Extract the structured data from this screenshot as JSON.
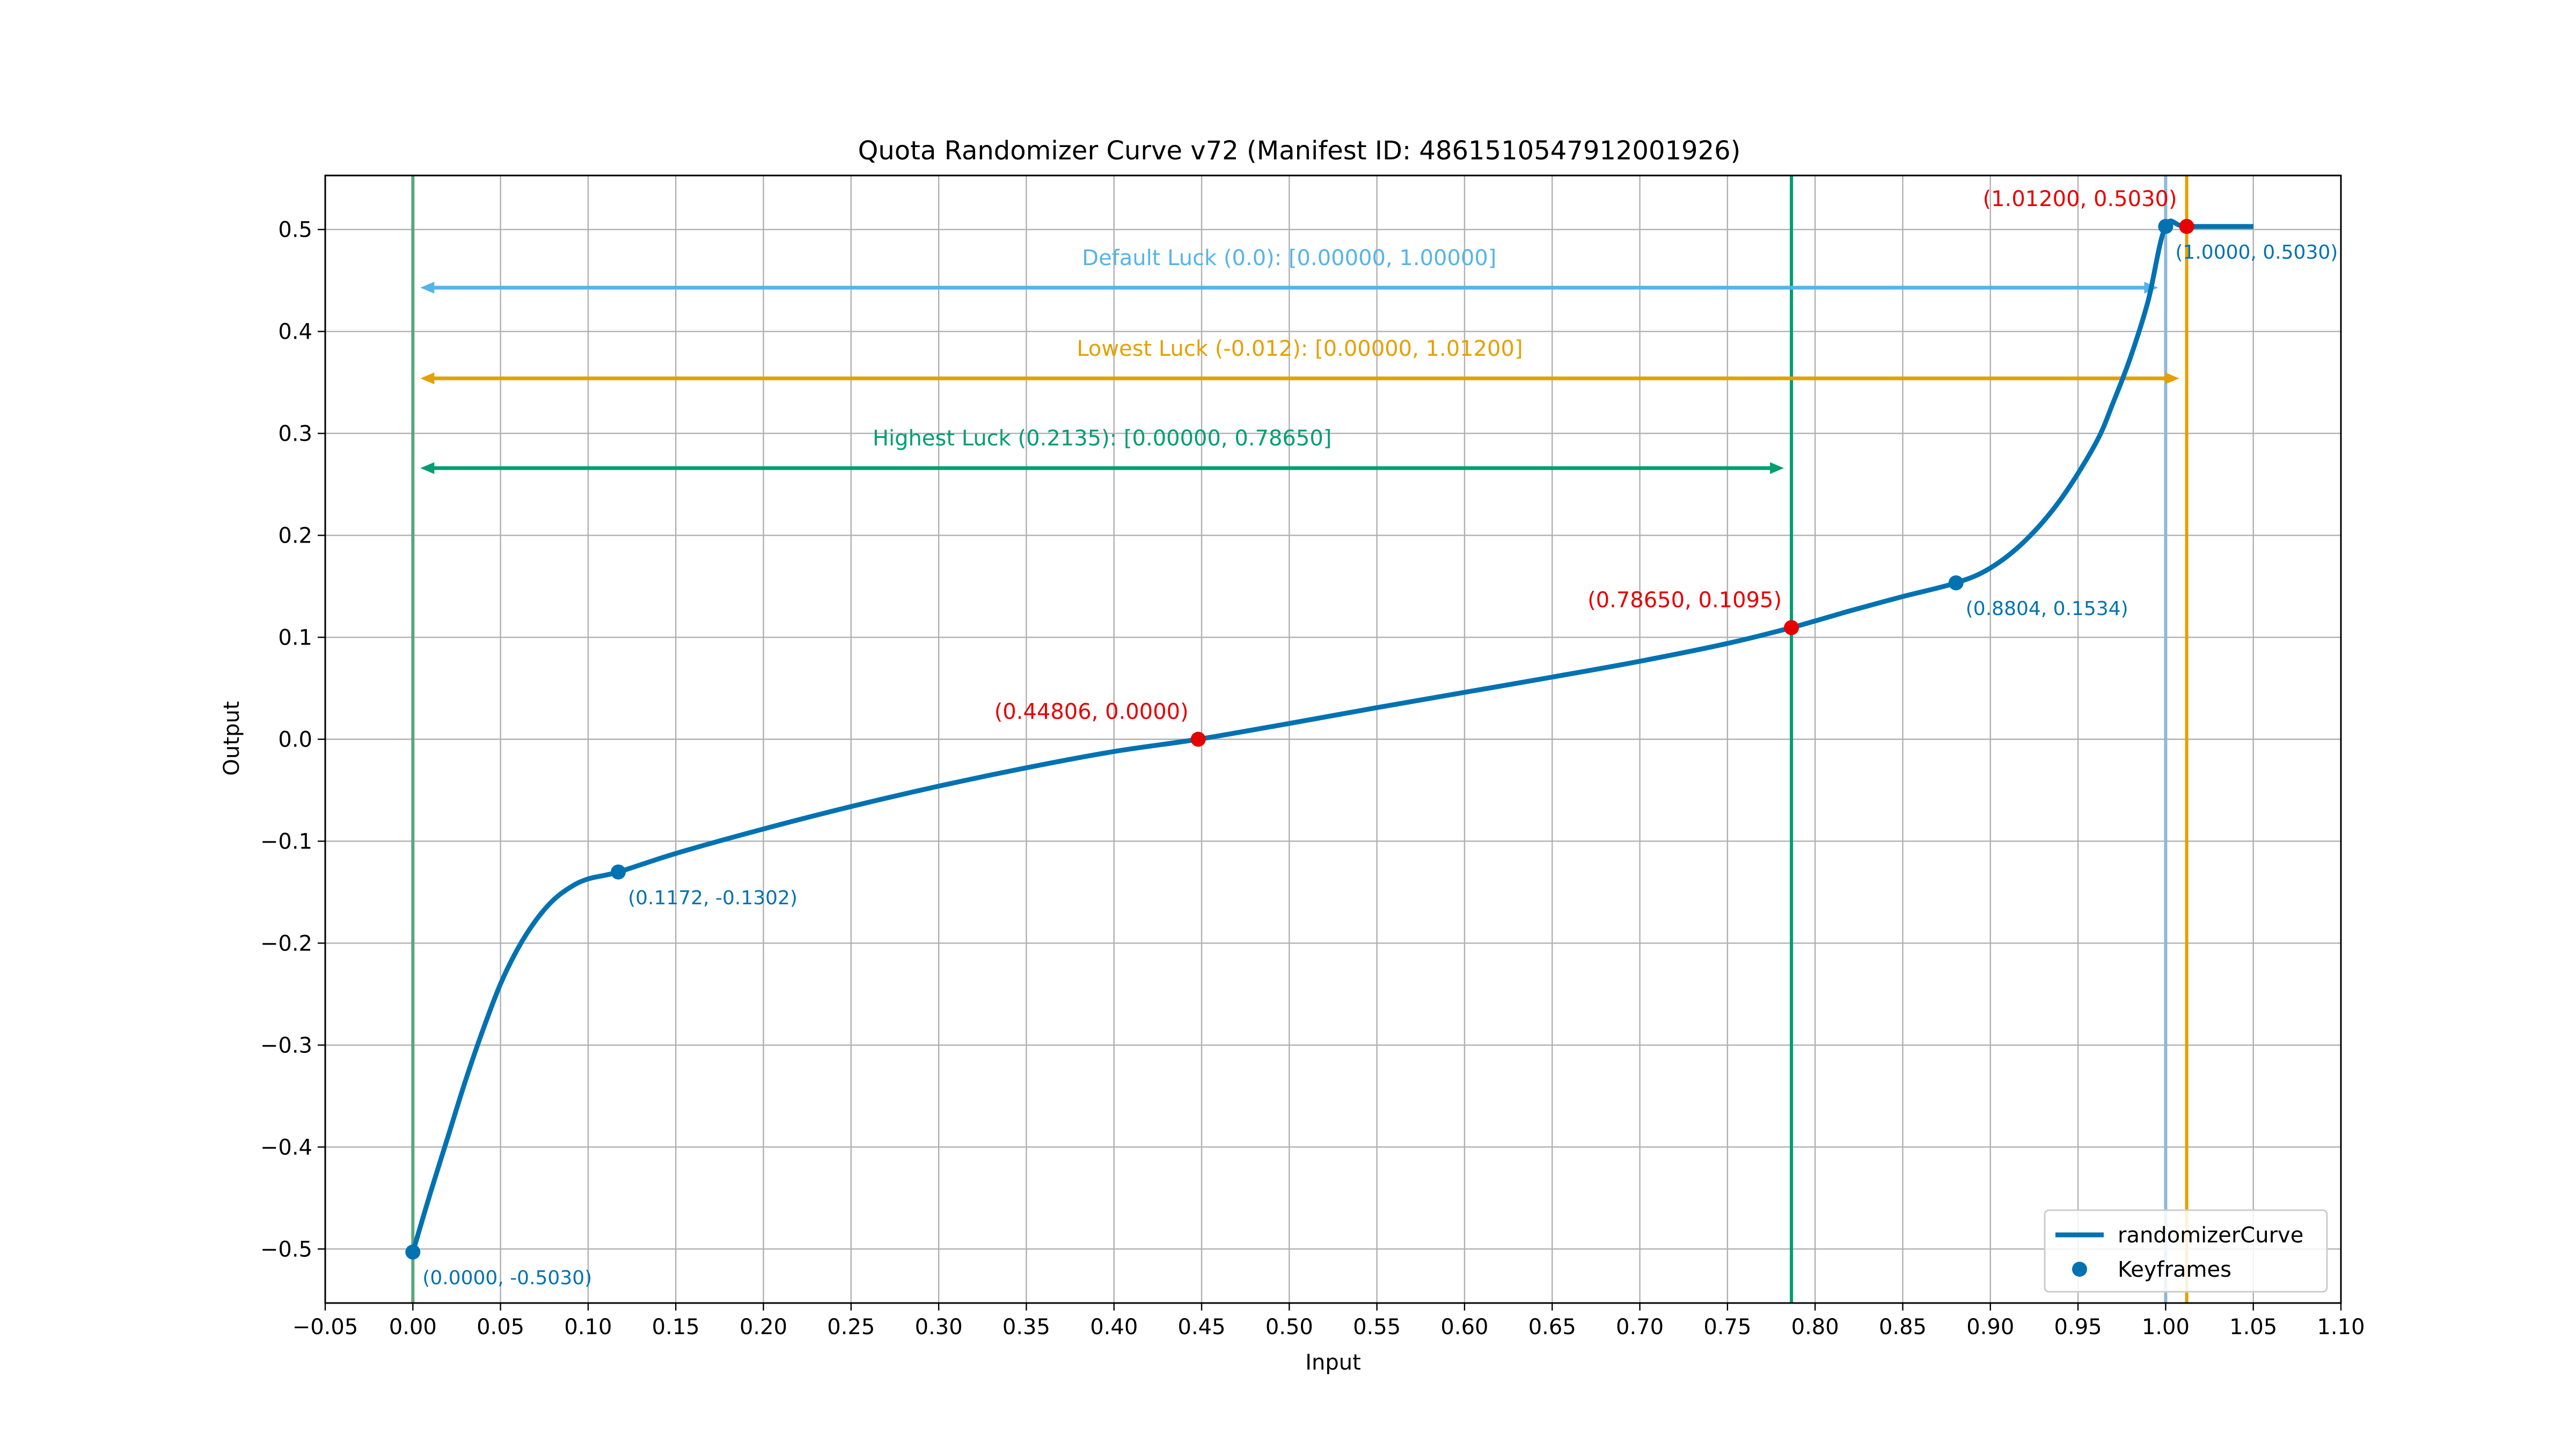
{
  "chart_data": {
    "type": "line",
    "title": "Quota Randomizer Curve v72 (Manifest ID: 4861510547912001926)",
    "xlabel": "Input",
    "ylabel": "Output",
    "xlim": [
      -0.05,
      1.1
    ],
    "ylim": [
      -0.553,
      0.553
    ],
    "x_ticks": [
      -0.05,
      0.0,
      0.05,
      0.1,
      0.15,
      0.2,
      0.25,
      0.3,
      0.35,
      0.4,
      0.45,
      0.5,
      0.55,
      0.6,
      0.65,
      0.7,
      0.75,
      0.8,
      0.85,
      0.9,
      0.95,
      1.0,
      1.05,
      1.1
    ],
    "x_tick_labels": [
      "−0.05",
      "0.00",
      "0.05",
      "0.10",
      "0.15",
      "0.20",
      "0.25",
      "0.30",
      "0.35",
      "0.40",
      "0.45",
      "0.50",
      "0.55",
      "0.60",
      "0.65",
      "0.70",
      "0.75",
      "0.80",
      "0.85",
      "0.90",
      "0.95",
      "1.00",
      "1.05",
      "1.10"
    ],
    "y_ticks": [
      -0.5,
      -0.4,
      -0.3,
      -0.2,
      -0.1,
      0.0,
      0.1,
      0.2,
      0.3,
      0.4,
      0.5
    ],
    "y_tick_labels": [
      "−0.5",
      "−0.4",
      "−0.3",
      "−0.2",
      "−0.1",
      "0.0",
      "0.1",
      "0.2",
      "0.3",
      "0.4",
      "0.5"
    ],
    "grid": true,
    "legend_position": "bottom-right",
    "curve": {
      "name": "randomizerCurve",
      "color": "#0072b2",
      "x": [
        0.0,
        0.01,
        0.02,
        0.03,
        0.04,
        0.05,
        0.06,
        0.07,
        0.08,
        0.09,
        0.1,
        0.1172,
        0.15,
        0.2,
        0.25,
        0.3,
        0.35,
        0.4,
        0.44806,
        0.5,
        0.55,
        0.6,
        0.65,
        0.7,
        0.75,
        0.7865,
        0.82,
        0.85,
        0.8804,
        0.9,
        0.92,
        0.94,
        0.96,
        0.97,
        0.98,
        0.99,
        1.0,
        1.012,
        1.05
      ],
      "y": [
        -0.503,
        -0.445,
        -0.39,
        -0.335,
        -0.285,
        -0.24,
        -0.205,
        -0.178,
        -0.158,
        -0.145,
        -0.137,
        -0.1302,
        -0.112,
        -0.088,
        -0.066,
        -0.046,
        -0.028,
        -0.012,
        0.0,
        0.0155,
        0.031,
        0.046,
        0.061,
        0.0765,
        0.094,
        0.1095,
        0.126,
        0.14,
        0.1534,
        0.168,
        0.195,
        0.235,
        0.29,
        0.33,
        0.375,
        0.43,
        0.503,
        0.503,
        0.503
      ]
    },
    "keyframes": {
      "name": "Keyframes",
      "color": "#0072b2",
      "points": [
        {
          "x": 0.0,
          "y": -0.503,
          "label": "(0.0000, -0.5030)"
        },
        {
          "x": 0.1172,
          "y": -0.1302,
          "label": "(0.1172, -0.1302)"
        },
        {
          "x": 0.8804,
          "y": 0.1534,
          "label": "(0.8804, 0.1534)"
        },
        {
          "x": 1.0,
          "y": 0.503,
          "label": "(1.0000, 0.5030)"
        }
      ]
    },
    "highlight_points": {
      "color": "#e60000",
      "points": [
        {
          "x": 0.44806,
          "y": 0.0,
          "label": "(0.44806, 0.0000)"
        },
        {
          "x": 0.7865,
          "y": 0.1095,
          "label": "(0.78650, 0.1095)"
        },
        {
          "x": 1.012,
          "y": 0.503,
          "label": "(1.01200, 0.5030)"
        }
      ]
    },
    "vertical_lines": [
      {
        "x": 0.0,
        "color": "#5aa67d"
      },
      {
        "x": 0.7865,
        "color": "#009e73"
      },
      {
        "x": 1.0,
        "color": "#8fb7d8"
      },
      {
        "x": 1.012,
        "color": "#e69f00"
      }
    ],
    "ranges": [
      {
        "label": "Default Luck (0.0): [0.00000, 1.00000]",
        "x0": 0.0,
        "x1": 1.0,
        "y": 0.443,
        "color": "#56b4e9"
      },
      {
        "label": "Lowest Luck (-0.012): [0.00000, 1.01200]",
        "x0": 0.0,
        "x1": 1.012,
        "y": 0.354,
        "color": "#e69f00"
      },
      {
        "label": "Highest Luck (0.2135): [0.00000, 0.78650]",
        "x0": 0.0,
        "x1": 0.7865,
        "y": 0.266,
        "color": "#009e73"
      }
    ]
  }
}
